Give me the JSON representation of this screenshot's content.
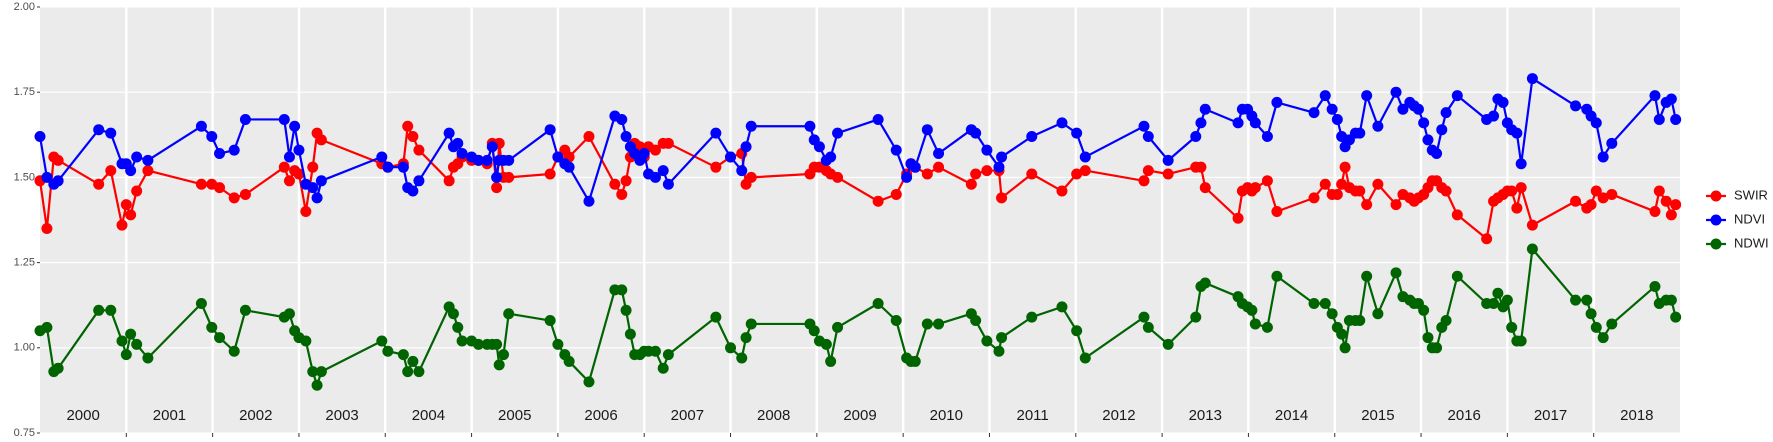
{
  "chart_data": {
    "type": "line",
    "x": [
      2000.0,
      2000.08,
      2000.16,
      2000.21,
      2000.68,
      2000.82,
      2000.95,
      2001.0,
      2001.05,
      2001.12,
      2001.25,
      2001.87,
      2001.99,
      2002.08,
      2002.25,
      2002.38,
      2002.83,
      2002.89,
      2002.95,
      2003.0,
      2003.08,
      2003.16,
      2003.21,
      2003.26,
      2003.96,
      2004.03,
      2004.21,
      2004.26,
      2004.32,
      2004.39,
      2004.74,
      2004.79,
      2004.84,
      2004.89,
      2005.0,
      2005.08,
      2005.18,
      2005.24,
      2005.29,
      2005.32,
      2005.37,
      2005.43,
      2005.91,
      2006.0,
      2006.08,
      2006.13,
      2006.36,
      2006.66,
      2006.74,
      2006.79,
      2006.84,
      2006.89,
      2006.95,
      2007.0,
      2007.05,
      2007.13,
      2007.22,
      2007.28,
      2007.83,
      2008.0,
      2008.13,
      2008.18,
      2008.24,
      2008.92,
      2008.97,
      2009.03,
      2009.11,
      2009.16,
      2009.24,
      2009.71,
      2009.92,
      2010.04,
      2010.09,
      2010.14,
      2010.28,
      2010.41,
      2010.79,
      2010.84,
      2010.97,
      2011.11,
      2011.14,
      2011.49,
      2011.84,
      2012.01,
      2012.11,
      2012.79,
      2012.84,
      2013.07,
      2013.39,
      2013.45,
      2013.5,
      2013.88,
      2013.93,
      2013.99,
      2014.04,
      2014.08,
      2014.22,
      2014.33,
      2014.76,
      2014.89,
      2014.97,
      2015.03,
      2015.08,
      2015.12,
      2015.17,
      2015.24,
      2015.29,
      2015.37,
      2015.5,
      2015.71,
      2015.79,
      2015.87,
      2015.92,
      2015.97,
      2016.03,
      2016.08,
      2016.13,
      2016.18,
      2016.24,
      2016.29,
      2016.42,
      2016.76,
      2016.84,
      2016.89,
      2016.95,
      2017.0,
      2017.05,
      2017.11,
      2017.16,
      2017.29,
      2017.79,
      2017.92,
      2017.97,
      2018.03,
      2018.11,
      2018.21,
      2018.71,
      2018.76,
      2018.84,
      2018.9,
      2018.95
    ],
    "series": [
      {
        "name": "SWIR",
        "color": "#ff0000",
        "values": [
          1.49,
          1.35,
          1.56,
          1.55,
          1.48,
          1.52,
          1.36,
          1.42,
          1.39,
          1.46,
          1.52,
          1.48,
          1.48,
          1.47,
          1.44,
          1.45,
          1.53,
          1.49,
          1.52,
          1.51,
          1.4,
          1.53,
          1.63,
          1.61,
          1.54,
          1.53,
          1.54,
          1.65,
          1.62,
          1.58,
          1.49,
          1.53,
          1.54,
          1.56,
          1.55,
          1.55,
          1.54,
          1.6,
          1.47,
          1.6,
          1.5,
          1.5,
          1.51,
          1.56,
          1.58,
          1.56,
          1.62,
          1.48,
          1.45,
          1.49,
          1.56,
          1.6,
          1.59,
          1.56,
          1.59,
          1.58,
          1.6,
          1.6,
          1.53,
          1.56,
          1.57,
          1.48,
          1.5,
          1.51,
          1.53,
          1.53,
          1.52,
          1.51,
          1.5,
          1.43,
          1.45,
          1.51,
          1.54,
          1.53,
          1.51,
          1.53,
          1.48,
          1.51,
          1.52,
          1.52,
          1.44,
          1.51,
          1.46,
          1.51,
          1.52,
          1.49,
          1.52,
          1.51,
          1.53,
          1.53,
          1.47,
          1.38,
          1.46,
          1.47,
          1.46,
          1.47,
          1.49,
          1.4,
          1.44,
          1.48,
          1.45,
          1.45,
          1.48,
          1.53,
          1.47,
          1.46,
          1.46,
          1.42,
          1.48,
          1.42,
          1.45,
          1.44,
          1.43,
          1.44,
          1.45,
          1.47,
          1.49,
          1.49,
          1.47,
          1.46,
          1.39,
          1.32,
          1.43,
          1.44,
          1.45,
          1.46,
          1.46,
          1.41,
          1.47,
          1.36,
          1.43,
          1.41,
          1.42,
          1.46,
          1.44,
          1.45,
          1.4,
          1.46,
          1.43,
          1.39,
          1.42
        ]
      },
      {
        "name": "NDVI",
        "color": "#0000ff",
        "values": [
          1.62,
          1.5,
          1.48,
          1.49,
          1.64,
          1.63,
          1.54,
          1.54,
          1.52,
          1.56,
          1.55,
          1.65,
          1.62,
          1.57,
          1.58,
          1.67,
          1.67,
          1.56,
          1.65,
          1.58,
          1.48,
          1.47,
          1.44,
          1.49,
          1.56,
          1.53,
          1.53,
          1.47,
          1.46,
          1.49,
          1.63,
          1.59,
          1.6,
          1.57,
          1.56,
          1.55,
          1.55,
          1.59,
          1.5,
          1.55,
          1.55,
          1.55,
          1.64,
          1.56,
          1.54,
          1.53,
          1.43,
          1.68,
          1.67,
          1.62,
          1.59,
          1.57,
          1.55,
          1.57,
          1.51,
          1.5,
          1.52,
          1.48,
          1.63,
          1.56,
          1.52,
          1.59,
          1.65,
          1.65,
          1.61,
          1.59,
          1.55,
          1.56,
          1.63,
          1.67,
          1.58,
          1.5,
          1.54,
          1.53,
          1.64,
          1.57,
          1.64,
          1.63,
          1.58,
          1.53,
          1.56,
          1.62,
          1.66,
          1.63,
          1.56,
          1.65,
          1.62,
          1.55,
          1.62,
          1.66,
          1.7,
          1.66,
          1.7,
          1.7,
          1.68,
          1.66,
          1.62,
          1.72,
          1.69,
          1.74,
          1.7,
          1.67,
          1.62,
          1.59,
          1.61,
          1.63,
          1.63,
          1.74,
          1.65,
          1.75,
          1.7,
          1.72,
          1.71,
          1.7,
          1.66,
          1.61,
          1.58,
          1.57,
          1.64,
          1.69,
          1.74,
          1.67,
          1.68,
          1.73,
          1.72,
          1.66,
          1.64,
          1.63,
          1.54,
          1.79,
          1.71,
          1.7,
          1.68,
          1.66,
          1.56,
          1.6,
          1.74,
          1.67,
          1.72,
          1.73,
          1.67
        ]
      },
      {
        "name": "NDWI",
        "color": "#006400",
        "values": [
          1.05,
          1.06,
          0.93,
          0.94,
          1.11,
          1.11,
          1.02,
          0.98,
          1.04,
          1.01,
          0.97,
          1.13,
          1.06,
          1.03,
          0.99,
          1.11,
          1.09,
          1.1,
          1.05,
          1.03,
          1.02,
          0.93,
          0.89,
          0.93,
          1.02,
          0.99,
          0.98,
          0.93,
          0.96,
          0.93,
          1.12,
          1.1,
          1.06,
          1.02,
          1.02,
          1.01,
          1.01,
          1.01,
          1.01,
          0.95,
          0.98,
          1.1,
          1.08,
          1.01,
          0.98,
          0.96,
          0.9,
          1.17,
          1.17,
          1.11,
          1.04,
          0.98,
          0.98,
          0.99,
          0.99,
          0.99,
          0.94,
          0.98,
          1.09,
          1.0,
          0.97,
          1.03,
          1.07,
          1.07,
          1.05,
          1.02,
          1.01,
          0.96,
          1.06,
          1.13,
          1.08,
          0.97,
          0.96,
          0.96,
          1.07,
          1.07,
          1.1,
          1.08,
          1.02,
          0.99,
          1.03,
          1.09,
          1.12,
          1.05,
          0.97,
          1.09,
          1.06,
          1.01,
          1.09,
          1.18,
          1.19,
          1.15,
          1.13,
          1.12,
          1.11,
          1.07,
          1.06,
          1.21,
          1.13,
          1.13,
          1.1,
          1.06,
          1.04,
          1.0,
          1.08,
          1.08,
          1.08,
          1.21,
          1.1,
          1.22,
          1.15,
          1.14,
          1.13,
          1.13,
          1.11,
          1.03,
          1.0,
          1.0,
          1.06,
          1.08,
          1.21,
          1.13,
          1.13,
          1.16,
          1.12,
          1.14,
          1.06,
          1.02,
          1.02,
          1.29,
          1.14,
          1.14,
          1.1,
          1.06,
          1.03,
          1.07,
          1.18,
          1.13,
          1.14,
          1.14,
          1.09
        ]
      }
    ],
    "xlim": [
      2000,
      2019
    ],
    "xticks": [
      {
        "value": 2000.5,
        "label": "2000"
      },
      {
        "value": 2001.5,
        "label": "2001"
      },
      {
        "value": 2002.5,
        "label": "2002"
      },
      {
        "value": 2003.5,
        "label": "2003"
      },
      {
        "value": 2004.5,
        "label": "2004"
      },
      {
        "value": 2005.5,
        "label": "2005"
      },
      {
        "value": 2006.5,
        "label": "2006"
      },
      {
        "value": 2007.5,
        "label": "2007"
      },
      {
        "value": 2008.5,
        "label": "2008"
      },
      {
        "value": 2009.5,
        "label": "2009"
      },
      {
        "value": 2010.5,
        "label": "2010"
      },
      {
        "value": 2011.5,
        "label": "2011"
      },
      {
        "value": 2012.5,
        "label": "2012"
      },
      {
        "value": 2013.5,
        "label": "2013"
      },
      {
        "value": 2014.5,
        "label": "2014"
      },
      {
        "value": 2015.5,
        "label": "2015"
      },
      {
        "value": 2016.5,
        "label": "2016"
      },
      {
        "value": 2017.5,
        "label": "2017"
      },
      {
        "value": 2018.5,
        "label": "2018"
      }
    ],
    "ylim": [
      0.75,
      2.0
    ],
    "yticks": [
      {
        "value": 0.75,
        "label": "0.75"
      },
      {
        "value": 1.0,
        "label": "1.00"
      },
      {
        "value": 1.25,
        "label": "1.25"
      },
      {
        "value": 1.5,
        "label": "1.50"
      },
      {
        "value": 1.75,
        "label": "1.75"
      },
      {
        "value": 2.0,
        "label": "2.00"
      }
    ],
    "grid": true,
    "legend": "right"
  }
}
